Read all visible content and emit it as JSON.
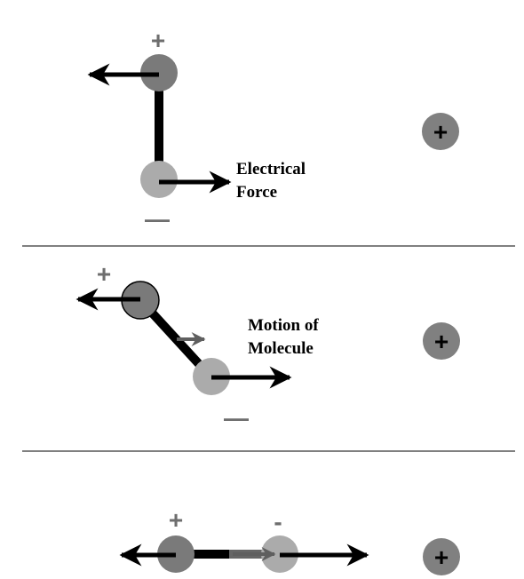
{
  "colors": {
    "positive_atom": "#7a7a7a",
    "negative_atom": "#ababab",
    "charge_ball": "#808080",
    "bond": "#000000",
    "sign": "#6e6e6e",
    "divider": "#000000",
    "motion_arrow": "#5f5f5f"
  },
  "panels": [
    {
      "id": "panel-1",
      "label_lines": [
        "Electrical",
        "Force"
      ],
      "plus_sign": "+",
      "minus_sign": "—"
    },
    {
      "id": "panel-2",
      "label_lines": [
        "Motion of",
        "Molecule"
      ],
      "plus_sign": "+",
      "minus_sign": "—"
    },
    {
      "id": "panel-3",
      "label_lines": [],
      "plus_sign": "+",
      "minus_sign": "-"
    }
  ],
  "external_charge": {
    "symbol": "+",
    "icon": "plus-charge-icon"
  }
}
